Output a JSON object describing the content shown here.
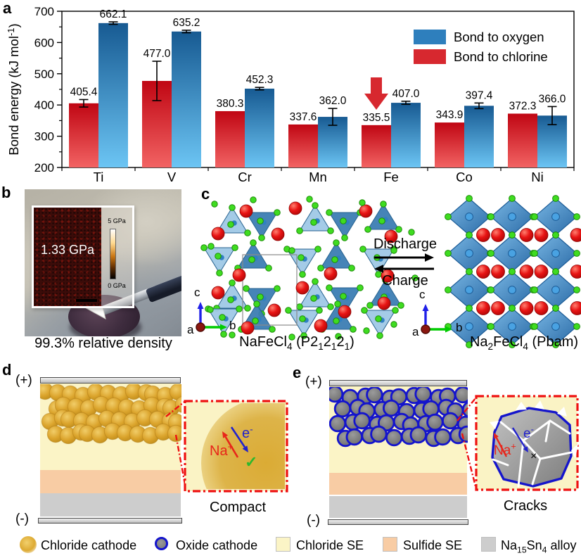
{
  "chart_data": {
    "type": "bar",
    "title": "",
    "categories": [
      "Ti",
      "V",
      "Cr",
      "Mn",
      "Fe",
      "Co",
      "Ni"
    ],
    "series": [
      {
        "name": "Bond to chlorine",
        "color": "#d7282f",
        "bar_gradient": [
          "#c00613",
          "#f26363"
        ],
        "values": [
          405.4,
          477.0,
          380.3,
          337.6,
          335.5,
          343.9,
          372.3
        ],
        "labels": [
          "405.4",
          "477.0",
          "380.3",
          "337.6",
          "335.5",
          "343.9",
          "372.3"
        ],
        "errors": [
          12,
          63,
          0,
          0,
          0,
          0,
          0
        ]
      },
      {
        "name": "Bond to oxygen",
        "color": "#2e7fbd",
        "bar_gradient": [
          "#175a92",
          "#6cc5f4"
        ],
        "values": [
          662.1,
          635.2,
          452.3,
          362.0,
          407.0,
          397.4,
          366.0
        ],
        "labels": [
          "662.1",
          "635.2",
          "452.3",
          "362.0",
          "407.0",
          "397.4",
          "366.0"
        ],
        "errors": [
          4,
          4,
          4,
          27,
          5,
          9,
          29
        ]
      }
    ],
    "legend_order": [
      1,
      0
    ],
    "legend_position": "top-right",
    "ylabel": [
      "Bond energy (kJ mol",
      {
        "sup": "-1"
      },
      ")"
    ],
    "ylim": [
      200,
      700
    ],
    "yticks": [
      200,
      300,
      400,
      500,
      600,
      700
    ],
    "grid": false,
    "annotation": {
      "type": "down-arrow",
      "category": "Fe",
      "series": 0,
      "color": "#d7282f"
    }
  },
  "panels": {
    "a": {
      "label": "a"
    },
    "b": {
      "label": "b",
      "inset_value": "1.33 GPa",
      "scale_top": "5 GPa",
      "scale_bottom": "0 GPa",
      "caption": "99.3% relative density"
    },
    "c": {
      "label": "c",
      "discharge": "Discharge",
      "charge": "Charge",
      "axis": {
        "a": "a",
        "b": "b",
        "c": "c"
      },
      "left_caption": [
        "NaFeCl",
        {
          "sub": "4"
        },
        " (P2",
        {
          "sub": "1"
        },
        "2",
        {
          "sub": "1"
        },
        "2",
        {
          "sub": "1"
        },
        ")"
      ],
      "right_caption": [
        "Na",
        {
          "sub": "2"
        },
        "FeCl",
        {
          "sub": "4"
        },
        " (Pbam)"
      ]
    },
    "d": {
      "label": "d",
      "plus": "(+)",
      "minus": "(-)",
      "na_label": [
        "Na",
        {
          "sup": "+"
        }
      ],
      "e_label": [
        "e",
        {
          "sup": "-"
        }
      ],
      "check": "✓",
      "caption": "Compact"
    },
    "e": {
      "label": "e",
      "plus": "(+)",
      "minus": "(-)",
      "na_label": [
        "Na",
        {
          "sup": "+"
        }
      ],
      "e_label": [
        "e",
        {
          "sup": "-"
        }
      ],
      "cross": "×",
      "caption": "Cracks"
    }
  },
  "legend": {
    "items": [
      {
        "label": "Chloride cathode"
      },
      {
        "label": "Oxide cathode"
      },
      {
        "label": "Chloride SE"
      },
      {
        "label": "Sulfide SE"
      },
      {
        "label": [
          "Na",
          {
            "sub": "15"
          },
          "Sn",
          {
            "sub": "4"
          },
          " alloy"
        ]
      }
    ]
  },
  "colors": {
    "chloride_se": "#FBF4C6",
    "sulfide_se": "#F8CCA4",
    "alloy": "#CDCDCD",
    "inset_border": "#ee1111",
    "oxide_ring": "#1414cc"
  }
}
